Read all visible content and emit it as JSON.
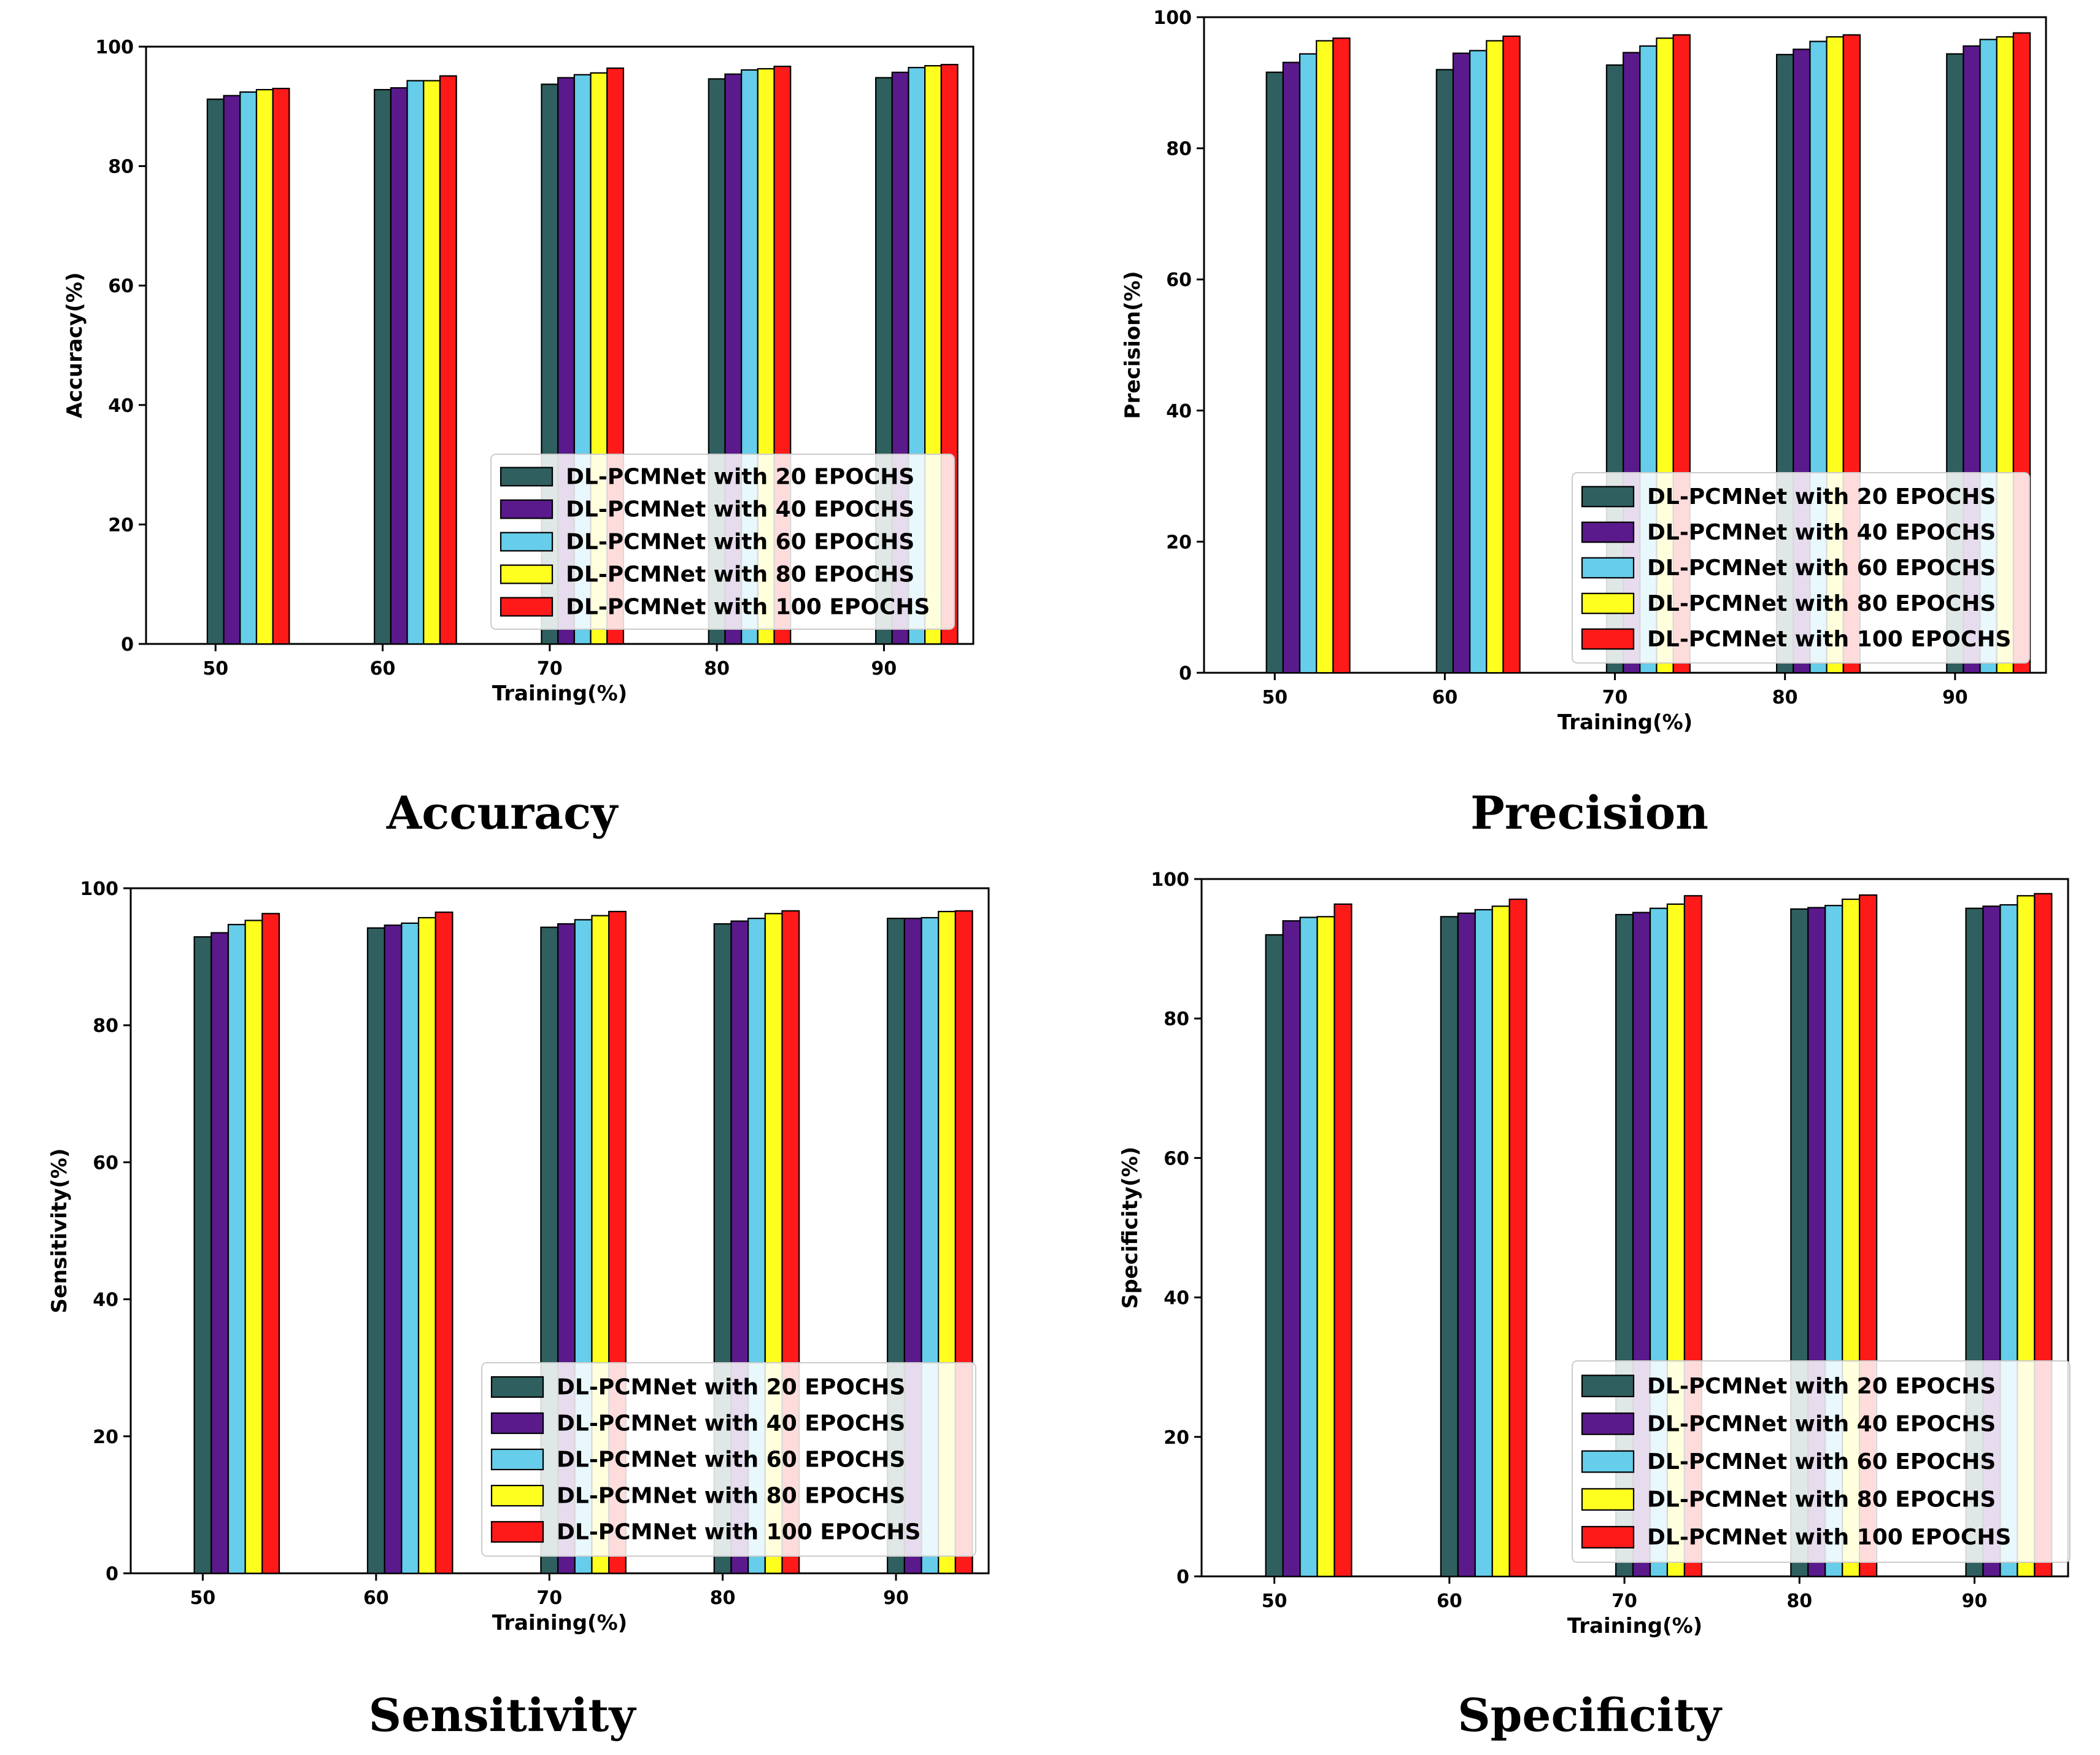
{
  "chart_data": [
    {
      "type": "bar",
      "caption": "Accuracy",
      "xlabel": "Training(%)",
      "ylabel": "Accuracy(%)",
      "ylim": [
        0,
        100
      ],
      "yticks": [
        0,
        20,
        40,
        60,
        80,
        100
      ],
      "categories": [
        "50",
        "60",
        "70",
        "80",
        "90"
      ],
      "legend_position": "lower-right",
      "series": [
        {
          "name": "DL-PCMNet with 20 EPOCHS",
          "color": "#2f5f5f",
          "values": [
            91.2,
            92.8,
            93.7,
            94.6,
            94.8
          ]
        },
        {
          "name": "DL-PCMNet with 40 EPOCHS",
          "color": "#5a1a8c",
          "values": [
            91.8,
            93.1,
            94.8,
            95.4,
            95.7
          ]
        },
        {
          "name": "DL-PCMNet with 60 EPOCHS",
          "color": "#66cdea",
          "values": [
            92.4,
            94.3,
            95.3,
            96.1,
            96.5
          ]
        },
        {
          "name": "DL-PCMNet with 80 EPOCHS",
          "color": "#ffff1f",
          "values": [
            92.8,
            94.3,
            95.6,
            96.3,
            96.8
          ]
        },
        {
          "name": "DL-PCMNet with 100 EPOCHS",
          "color": "#ff1a1a",
          "values": [
            93.0,
            95.1,
            96.4,
            96.7,
            97.0
          ]
        }
      ]
    },
    {
      "type": "bar",
      "caption": "Precision",
      "xlabel": "Training(%)",
      "ylabel": "Precision(%)",
      "ylim": [
        0,
        100
      ],
      "yticks": [
        0,
        20,
        40,
        60,
        80,
        100
      ],
      "categories": [
        "50",
        "60",
        "70",
        "80",
        "90"
      ],
      "legend_position": "lower-right",
      "series": [
        {
          "name": "DL-PCMNet with 20 EPOCHS",
          "color": "#2f5f5f",
          "values": [
            91.6,
            92.0,
            92.7,
            94.3,
            94.4
          ]
        },
        {
          "name": "DL-PCMNet with 40 EPOCHS",
          "color": "#5a1a8c",
          "values": [
            93.1,
            94.5,
            94.6,
            95.1,
            95.6
          ]
        },
        {
          "name": "DL-PCMNet with 60 EPOCHS",
          "color": "#66cdea",
          "values": [
            94.4,
            94.9,
            95.6,
            96.3,
            96.6
          ]
        },
        {
          "name": "DL-PCMNet with 80 EPOCHS",
          "color": "#ffff1f",
          "values": [
            96.4,
            96.4,
            96.8,
            97.0,
            97.0
          ]
        },
        {
          "name": "DL-PCMNet with 100 EPOCHS",
          "color": "#ff1a1a",
          "values": [
            96.8,
            97.1,
            97.3,
            97.3,
            97.6
          ]
        }
      ]
    },
    {
      "type": "bar",
      "caption": "Sensitivity",
      "xlabel": "Training(%)",
      "ylabel": "Sensitivity(%)",
      "ylim": [
        0,
        100
      ],
      "yticks": [
        0,
        20,
        40,
        60,
        80,
        100
      ],
      "categories": [
        "50",
        "60",
        "70",
        "80",
        "90"
      ],
      "legend_position": "lower-right",
      "series": [
        {
          "name": "DL-PCMNet with 20 EPOCHS",
          "color": "#2f5f5f",
          "values": [
            92.9,
            94.2,
            94.3,
            94.8,
            95.6
          ]
        },
        {
          "name": "DL-PCMNet with 40 EPOCHS",
          "color": "#5a1a8c",
          "values": [
            93.5,
            94.6,
            94.8,
            95.2,
            95.6
          ]
        },
        {
          "name": "DL-PCMNet with 60 EPOCHS",
          "color": "#66cdea",
          "values": [
            94.7,
            94.9,
            95.4,
            95.6,
            95.7
          ]
        },
        {
          "name": "DL-PCMNet with 80 EPOCHS",
          "color": "#ffff1f",
          "values": [
            95.3,
            95.7,
            96.0,
            96.3,
            96.6
          ]
        },
        {
          "name": "DL-PCMNet with 100 EPOCHS",
          "color": "#ff1a1a",
          "values": [
            96.3,
            96.5,
            96.6,
            96.7,
            96.7
          ]
        }
      ]
    },
    {
      "type": "bar",
      "caption": "Specificity",
      "xlabel": "Training(%)",
      "ylabel": "Specificity(%)",
      "ylim": [
        0,
        100
      ],
      "yticks": [
        0,
        20,
        40,
        60,
        80,
        100
      ],
      "categories": [
        "50",
        "60",
        "70",
        "80",
        "90"
      ],
      "legend_position": "lower-right",
      "series": [
        {
          "name": "DL-PCMNet with 20 EPOCHS",
          "color": "#2f5f5f",
          "values": [
            92.0,
            94.6,
            94.9,
            95.7,
            95.8
          ]
        },
        {
          "name": "DL-PCMNet with 40 EPOCHS",
          "color": "#5a1a8c",
          "values": [
            94.0,
            95.1,
            95.2,
            95.9,
            96.1
          ]
        },
        {
          "name": "DL-PCMNet with 60 EPOCHS",
          "color": "#66cdea",
          "values": [
            94.5,
            95.6,
            95.8,
            96.2,
            96.3
          ]
        },
        {
          "name": "DL-PCMNet with 80 EPOCHS",
          "color": "#ffff1f",
          "values": [
            94.6,
            96.1,
            96.4,
            97.1,
            97.6
          ]
        },
        {
          "name": "DL-PCMNet with 100 EPOCHS",
          "color": "#ff1a1a",
          "values": [
            96.4,
            97.1,
            97.6,
            97.7,
            97.9
          ]
        }
      ]
    }
  ]
}
